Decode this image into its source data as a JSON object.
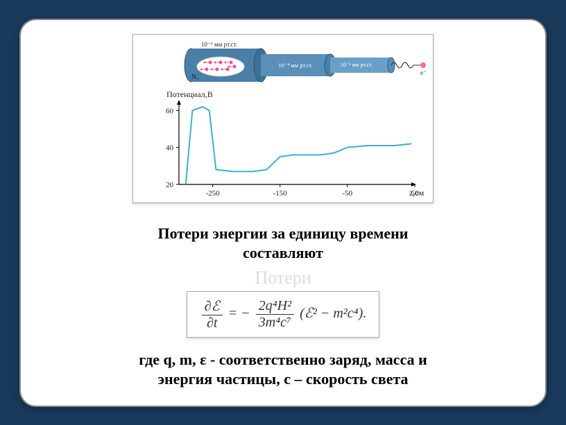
{
  "page": {
    "bg_color": "#1a3a5c",
    "card_bg": "#ffffff"
  },
  "apparatus": {
    "stages": [
      {
        "label": "10⁻⁶ мм рт.ст.",
        "color": "#4a7fa8"
      },
      {
        "label": "10⁻⁴ мм рт.ст.",
        "color": "#5a8fb8"
      },
      {
        "label": "10⁻³ мм рт.ст.",
        "color": "#6a9fc8"
      }
    ],
    "gas_label": "N₂",
    "particle_label": "e⁻",
    "coil_visible": true
  },
  "chart": {
    "ylabel": "Потенциал,В",
    "xlabel": "z,см",
    "line_color": "#39b0d6",
    "axis_color": "#000000",
    "xlim": [
      -300,
      50
    ],
    "ylim": [
      20,
      65
    ],
    "xticks": [
      -250,
      -150,
      -50,
      50
    ],
    "yticks": [
      20,
      40,
      60
    ],
    "series": [
      {
        "x": -290,
        "y": 20
      },
      {
        "x": -280,
        "y": 60
      },
      {
        "x": -265,
        "y": 62
      },
      {
        "x": -255,
        "y": 60
      },
      {
        "x": -245,
        "y": 28
      },
      {
        "x": -220,
        "y": 27
      },
      {
        "x": -190,
        "y": 27
      },
      {
        "x": -170,
        "y": 28
      },
      {
        "x": -150,
        "y": 35
      },
      {
        "x": -130,
        "y": 36
      },
      {
        "x": -90,
        "y": 36
      },
      {
        "x": -70,
        "y": 37
      },
      {
        "x": -50,
        "y": 40
      },
      {
        "x": -20,
        "y": 41
      },
      {
        "x": 20,
        "y": 41
      },
      {
        "x": 45,
        "y": 42
      }
    ]
  },
  "text": {
    "heading_line1": "Потери энергии за единицу времени",
    "heading_line2": "составляют",
    "ghost": "Потери",
    "caption_line1": "где q, m, ε - соответственно заряд, масса и",
    "caption_line2": "энергия частицы, c – скорость света"
  },
  "formula": {
    "lhs_num": "∂ℰ",
    "lhs_den": "∂t",
    "eq": " = −",
    "rhs_num": "2q⁴H²",
    "rhs_den": "3m⁴c⁷",
    "tail": "(ℰ² − m²c⁴)."
  }
}
